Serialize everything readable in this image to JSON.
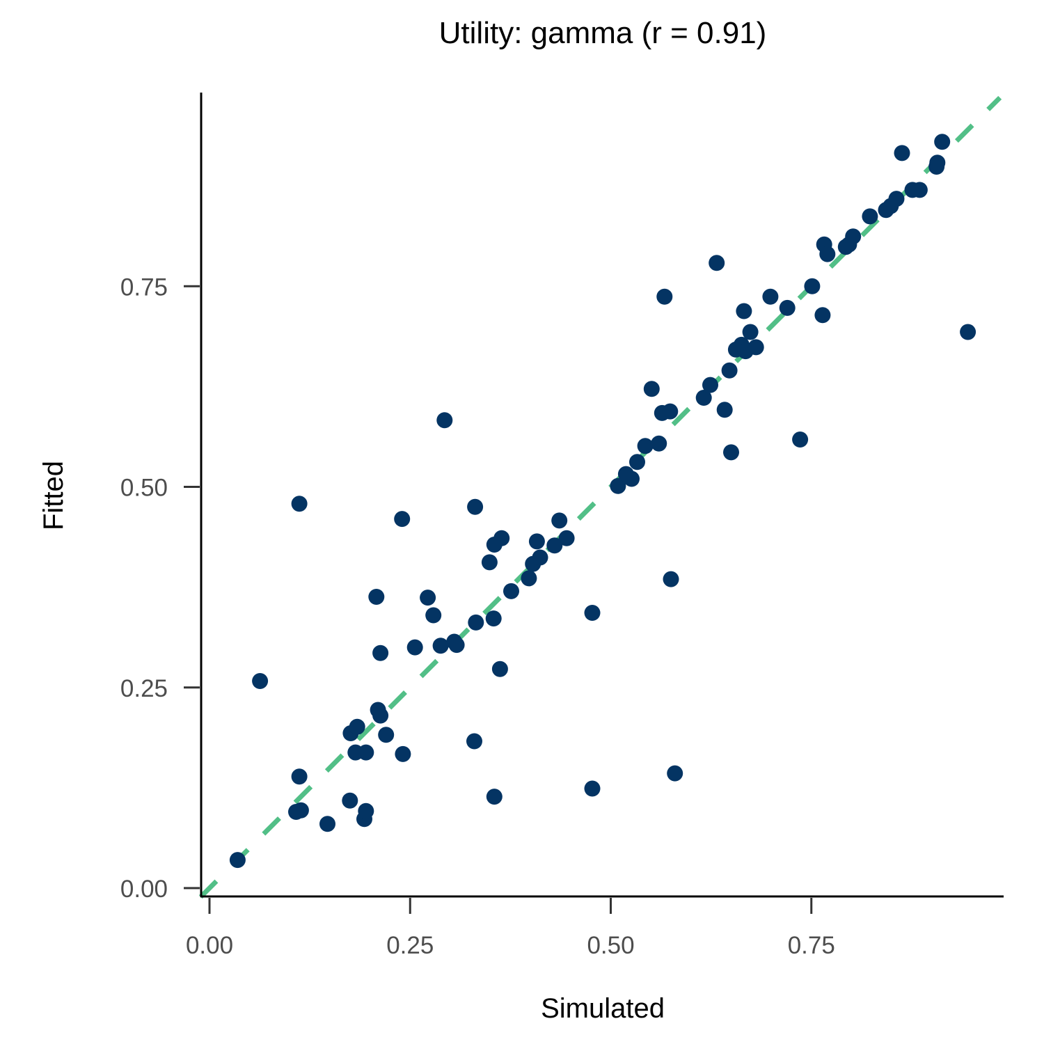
{
  "chart_data": {
    "type": "scatter",
    "title": "Utility: gamma (r = 0.91)",
    "xlabel": "Simulated",
    "ylabel": "Fitted",
    "xlim": [
      -0.011,
      0.99
    ],
    "ylim": [
      -0.011,
      0.985
    ],
    "xticks": [
      0.0,
      0.25,
      0.5,
      0.75
    ],
    "xtick_labels": [
      "0.00",
      "0.25",
      "0.50",
      "0.75"
    ],
    "yticks": [
      0.0,
      0.25,
      0.5,
      0.75
    ],
    "ytick_labels": [
      "0.00",
      "0.25",
      "0.50",
      "0.75"
    ],
    "grid": false,
    "legend": null,
    "reference_line": {
      "type": "identity",
      "style": "dashed",
      "color": "#52BF87",
      "slope": 1,
      "intercept": 0
    },
    "point_color": "#043463",
    "points": [
      {
        "x": 0.035,
        "y": 0.035
      },
      {
        "x": 0.063,
        "y": 0.258
      },
      {
        "x": 0.108,
        "y": 0.095
      },
      {
        "x": 0.114,
        "y": 0.097
      },
      {
        "x": 0.112,
        "y": 0.139
      },
      {
        "x": 0.112,
        "y": 0.479
      },
      {
        "x": 0.147,
        "y": 0.08
      },
      {
        "x": 0.175,
        "y": 0.109
      },
      {
        "x": 0.193,
        "y": 0.086
      },
      {
        "x": 0.195,
        "y": 0.096
      },
      {
        "x": 0.176,
        "y": 0.193
      },
      {
        "x": 0.184,
        "y": 0.201
      },
      {
        "x": 0.182,
        "y": 0.169
      },
      {
        "x": 0.195,
        "y": 0.169
      },
      {
        "x": 0.21,
        "y": 0.222
      },
      {
        "x": 0.213,
        "y": 0.215
      },
      {
        "x": 0.22,
        "y": 0.191
      },
      {
        "x": 0.241,
        "y": 0.167
      },
      {
        "x": 0.213,
        "y": 0.293
      },
      {
        "x": 0.208,
        "y": 0.363
      },
      {
        "x": 0.24,
        "y": 0.46
      },
      {
        "x": 0.256,
        "y": 0.3
      },
      {
        "x": 0.272,
        "y": 0.362
      },
      {
        "x": 0.279,
        "y": 0.34
      },
      {
        "x": 0.288,
        "y": 0.302
      },
      {
        "x": 0.293,
        "y": 0.583
      },
      {
        "x": 0.305,
        "y": 0.307
      },
      {
        "x": 0.308,
        "y": 0.303
      },
      {
        "x": 0.332,
        "y": 0.331
      },
      {
        "x": 0.331,
        "y": 0.475
      },
      {
        "x": 0.33,
        "y": 0.183
      },
      {
        "x": 0.349,
        "y": 0.406
      },
      {
        "x": 0.355,
        "y": 0.428
      },
      {
        "x": 0.354,
        "y": 0.336
      },
      {
        "x": 0.364,
        "y": 0.436
      },
      {
        "x": 0.362,
        "y": 0.273
      },
      {
        "x": 0.355,
        "y": 0.114
      },
      {
        "x": 0.376,
        "y": 0.37
      },
      {
        "x": 0.398,
        "y": 0.386
      },
      {
        "x": 0.403,
        "y": 0.404
      },
      {
        "x": 0.408,
        "y": 0.432
      },
      {
        "x": 0.412,
        "y": 0.412
      },
      {
        "x": 0.43,
        "y": 0.427
      },
      {
        "x": 0.436,
        "y": 0.458
      },
      {
        "x": 0.445,
        "y": 0.436
      },
      {
        "x": 0.477,
        "y": 0.343
      },
      {
        "x": 0.477,
        "y": 0.124
      },
      {
        "x": 0.509,
        "y": 0.501
      },
      {
        "x": 0.519,
        "y": 0.516
      },
      {
        "x": 0.526,
        "y": 0.51
      },
      {
        "x": 0.533,
        "y": 0.531
      },
      {
        "x": 0.543,
        "y": 0.551
      },
      {
        "x": 0.56,
        "y": 0.554
      },
      {
        "x": 0.551,
        "y": 0.622
      },
      {
        "x": 0.564,
        "y": 0.592
      },
      {
        "x": 0.574,
        "y": 0.594
      },
      {
        "x": 0.567,
        "y": 0.737
      },
      {
        "x": 0.575,
        "y": 0.385
      },
      {
        "x": 0.58,
        "y": 0.143
      },
      {
        "x": 0.616,
        "y": 0.611
      },
      {
        "x": 0.624,
        "y": 0.627
      },
      {
        "x": 0.632,
        "y": 0.779
      },
      {
        "x": 0.642,
        "y": 0.596
      },
      {
        "x": 0.648,
        "y": 0.645
      },
      {
        "x": 0.65,
        "y": 0.543
      },
      {
        "x": 0.656,
        "y": 0.671
      },
      {
        "x": 0.663,
        "y": 0.677
      },
      {
        "x": 0.668,
        "y": 0.669
      },
      {
        "x": 0.666,
        "y": 0.719
      },
      {
        "x": 0.674,
        "y": 0.693
      },
      {
        "x": 0.681,
        "y": 0.674
      },
      {
        "x": 0.699,
        "y": 0.737
      },
      {
        "x": 0.72,
        "y": 0.723
      },
      {
        "x": 0.736,
        "y": 0.559
      },
      {
        "x": 0.751,
        "y": 0.75
      },
      {
        "x": 0.764,
        "y": 0.714
      },
      {
        "x": 0.766,
        "y": 0.802
      },
      {
        "x": 0.77,
        "y": 0.79
      },
      {
        "x": 0.793,
        "y": 0.799
      },
      {
        "x": 0.797,
        "y": 0.802
      },
      {
        "x": 0.802,
        "y": 0.812
      },
      {
        "x": 0.823,
        "y": 0.837
      },
      {
        "x": 0.843,
        "y": 0.845
      },
      {
        "x": 0.849,
        "y": 0.85
      },
      {
        "x": 0.856,
        "y": 0.859
      },
      {
        "x": 0.863,
        "y": 0.916
      },
      {
        "x": 0.876,
        "y": 0.87
      },
      {
        "x": 0.885,
        "y": 0.87
      },
      {
        "x": 0.906,
        "y": 0.899
      },
      {
        "x": 0.907,
        "y": 0.904
      },
      {
        "x": 0.913,
        "y": 0.93
      },
      {
        "x": 0.945,
        "y": 0.693
      }
    ]
  },
  "colors": {
    "point": "#043463",
    "reference_line": "#52BF87",
    "axis": "#000000",
    "tick": "#333333",
    "tick_label": "#4d4d4d"
  }
}
